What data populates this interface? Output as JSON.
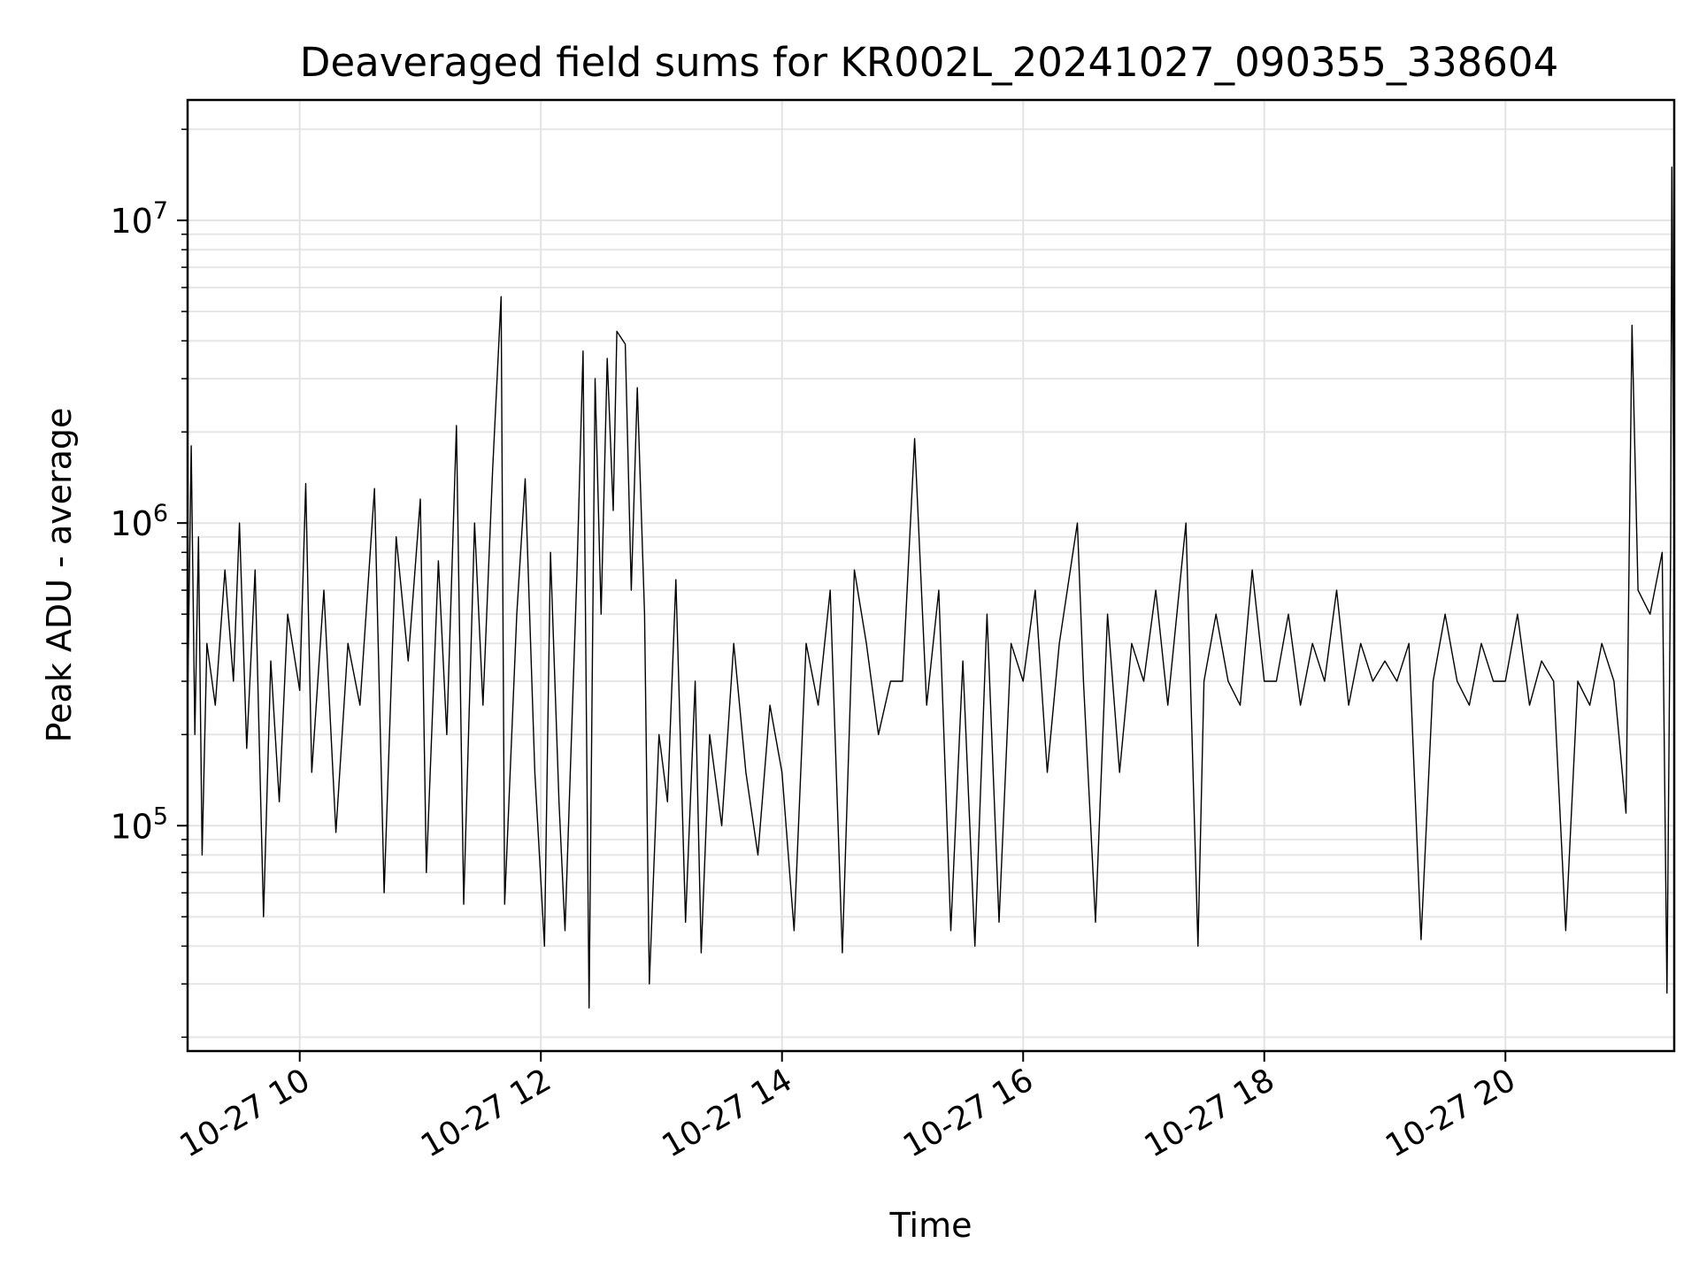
{
  "chart_data": {
    "type": "line",
    "title": "Deaveraged field sums for KR002L_20241027_090355_338604",
    "xlabel": "Time",
    "ylabel": "Peak ADU - average",
    "x_ticks": [
      "10-27 10",
      "10-27 12",
      "10-27 14",
      "10-27 16",
      "10-27 18",
      "10-27 20"
    ],
    "x_tick_hours": [
      10,
      12,
      14,
      16,
      18,
      20
    ],
    "xlim_hours": [
      9.07,
      21.4
    ],
    "yscale": "log",
    "y_tick_exponents": [
      5,
      6,
      7
    ],
    "ylim": [
      18000,
      25000000
    ],
    "grid": true,
    "series": [
      {
        "line_color": "#000000",
        "points": [
          [
            9.07,
            250000
          ],
          [
            9.1,
            1800000
          ],
          [
            9.13,
            200000
          ],
          [
            9.16,
            900000
          ],
          [
            9.19,
            80000
          ],
          [
            9.23,
            400000
          ],
          [
            9.3,
            250000
          ],
          [
            9.38,
            700000
          ],
          [
            9.45,
            300000
          ],
          [
            9.5,
            1000000
          ],
          [
            9.56,
            180000
          ],
          [
            9.63,
            700000
          ],
          [
            9.7,
            50000
          ],
          [
            9.76,
            350000
          ],
          [
            9.83,
            120000
          ],
          [
            9.9,
            500000
          ],
          [
            10.0,
            280000
          ],
          [
            10.05,
            1350000
          ],
          [
            10.1,
            150000
          ],
          [
            10.2,
            600000
          ],
          [
            10.3,
            95000
          ],
          [
            10.4,
            400000
          ],
          [
            10.5,
            250000
          ],
          [
            10.62,
            1300000
          ],
          [
            10.7,
            60000
          ],
          [
            10.8,
            900000
          ],
          [
            10.9,
            350000
          ],
          [
            11.0,
            1200000
          ],
          [
            11.05,
            70000
          ],
          [
            11.15,
            750000
          ],
          [
            11.22,
            200000
          ],
          [
            11.3,
            2100000
          ],
          [
            11.36,
            55000
          ],
          [
            11.45,
            1000000
          ],
          [
            11.52,
            250000
          ],
          [
            11.6,
            1500000
          ],
          [
            11.67,
            5600000
          ],
          [
            11.7,
            55000
          ],
          [
            11.8,
            500000
          ],
          [
            11.87,
            1400000
          ],
          [
            11.95,
            150000
          ],
          [
            12.03,
            40000
          ],
          [
            12.08,
            800000
          ],
          [
            12.15,
            120000
          ],
          [
            12.2,
            45000
          ],
          [
            12.3,
            700000
          ],
          [
            12.35,
            3700000
          ],
          [
            12.4,
            25000
          ],
          [
            12.45,
            3000000
          ],
          [
            12.5,
            500000
          ],
          [
            12.55,
            3500000
          ],
          [
            12.6,
            1100000
          ],
          [
            12.63,
            4300000
          ],
          [
            12.7,
            3900000
          ],
          [
            12.75,
            600000
          ],
          [
            12.8,
            2800000
          ],
          [
            12.86,
            500000
          ],
          [
            12.9,
            30000
          ],
          [
            12.98,
            200000
          ],
          [
            13.05,
            120000
          ],
          [
            13.12,
            650000
          ],
          [
            13.2,
            48000
          ],
          [
            13.28,
            300000
          ],
          [
            13.33,
            38000
          ],
          [
            13.4,
            200000
          ],
          [
            13.5,
            100000
          ],
          [
            13.6,
            400000
          ],
          [
            13.7,
            150000
          ],
          [
            13.8,
            80000
          ],
          [
            13.9,
            250000
          ],
          [
            14.0,
            150000
          ],
          [
            14.1,
            45000
          ],
          [
            14.2,
            400000
          ],
          [
            14.3,
            250000
          ],
          [
            14.4,
            600000
          ],
          [
            14.5,
            38000
          ],
          [
            14.6,
            700000
          ],
          [
            14.7,
            400000
          ],
          [
            14.8,
            200000
          ],
          [
            14.9,
            300000
          ],
          [
            15.0,
            300000
          ],
          [
            15.1,
            1900000
          ],
          [
            15.2,
            250000
          ],
          [
            15.3,
            600000
          ],
          [
            15.4,
            45000
          ],
          [
            15.5,
            350000
          ],
          [
            15.6,
            40000
          ],
          [
            15.7,
            500000
          ],
          [
            15.8,
            48000
          ],
          [
            15.9,
            400000
          ],
          [
            16.0,
            300000
          ],
          [
            16.1,
            600000
          ],
          [
            16.2,
            150000
          ],
          [
            16.3,
            400000
          ],
          [
            16.45,
            1000000
          ],
          [
            16.5,
            300000
          ],
          [
            16.6,
            48000
          ],
          [
            16.7,
            500000
          ],
          [
            16.8,
            150000
          ],
          [
            16.9,
            400000
          ],
          [
            17.0,
            300000
          ],
          [
            17.1,
            600000
          ],
          [
            17.2,
            250000
          ],
          [
            17.35,
            1000000
          ],
          [
            17.45,
            40000
          ],
          [
            17.5,
            300000
          ],
          [
            17.6,
            500000
          ],
          [
            17.7,
            300000
          ],
          [
            17.8,
            250000
          ],
          [
            17.9,
            700000
          ],
          [
            18.0,
            300000
          ],
          [
            18.1,
            300000
          ],
          [
            18.2,
            500000
          ],
          [
            18.3,
            250000
          ],
          [
            18.4,
            400000
          ],
          [
            18.5,
            300000
          ],
          [
            18.6,
            600000
          ],
          [
            18.7,
            250000
          ],
          [
            18.8,
            400000
          ],
          [
            18.9,
            300000
          ],
          [
            19.0,
            350000
          ],
          [
            19.1,
            300000
          ],
          [
            19.2,
            400000
          ],
          [
            19.3,
            42000
          ],
          [
            19.4,
            300000
          ],
          [
            19.5,
            500000
          ],
          [
            19.6,
            300000
          ],
          [
            19.7,
            250000
          ],
          [
            19.8,
            400000
          ],
          [
            19.9,
            300000
          ],
          [
            20.0,
            300000
          ],
          [
            20.1,
            500000
          ],
          [
            20.2,
            250000
          ],
          [
            20.3,
            350000
          ],
          [
            20.4,
            300000
          ],
          [
            20.5,
            45000
          ],
          [
            20.6,
            300000
          ],
          [
            20.7,
            250000
          ],
          [
            20.8,
            400000
          ],
          [
            20.9,
            300000
          ],
          [
            21.0,
            110000
          ],
          [
            21.05,
            4500000
          ],
          [
            21.1,
            600000
          ],
          [
            21.2,
            500000
          ],
          [
            21.3,
            800000
          ],
          [
            21.34,
            28000
          ],
          [
            21.37,
            800000
          ],
          [
            21.38,
            15000000
          ],
          [
            21.4,
            600000
          ]
        ]
      }
    ]
  }
}
